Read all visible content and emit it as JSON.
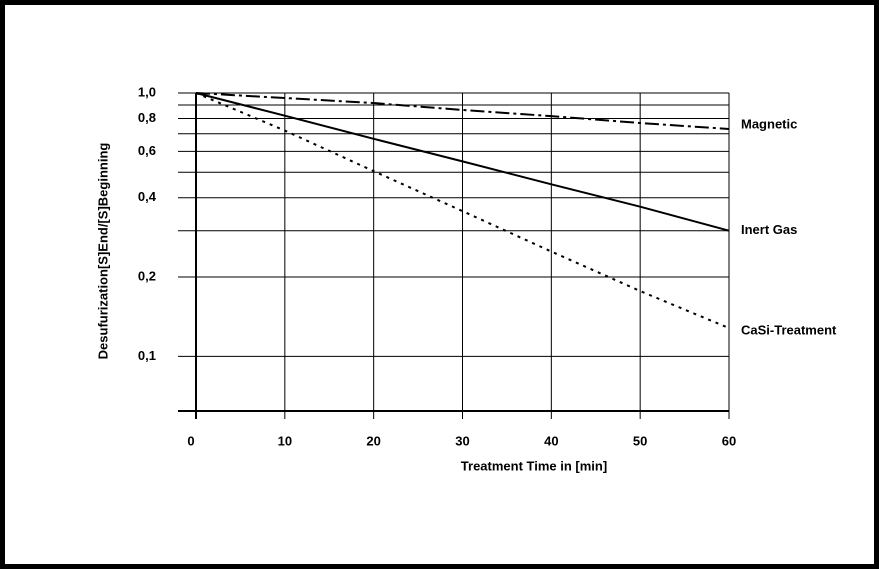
{
  "chart_data": {
    "type": "line",
    "y_label": "Desufurization[S]End/[S]Beginning",
    "x_label": "Treatment Time in [min]",
    "x": [
      0,
      10,
      20,
      30,
      40,
      50,
      60
    ],
    "series": [
      {
        "name": "Magnetic",
        "color": "#000000",
        "style": "dashdot",
        "values": [
          1.0,
          0.957,
          0.916,
          0.862,
          0.817,
          0.769,
          0.73
        ]
      },
      {
        "name": "Inert Gas",
        "color": "#000000",
        "style": "solid",
        "values": [
          1.0,
          0.82,
          0.67,
          0.55,
          0.45,
          0.37,
          0.3
        ]
      },
      {
        "name": "CaSi-Treatment",
        "color": "#000000",
        "style": "dotted",
        "values": [
          1.0,
          0.72,
          0.505,
          0.356,
          0.25,
          0.177,
          0.128
        ]
      }
    ],
    "xlim": [
      0,
      60
    ],
    "xticks": [
      0,
      10,
      20,
      30,
      40,
      50,
      60
    ],
    "ylim": [
      0.062,
      1
    ],
    "log_y": true,
    "yticks": [
      {
        "value": 1,
        "label": "1,0"
      },
      {
        "value": 0.8,
        "label": "0,8"
      },
      {
        "value": 0.6,
        "label": "0,6"
      },
      {
        "value": 0.4,
        "label": "0,4"
      },
      {
        "value": 0.2,
        "label": "0,2"
      },
      {
        "value": 0.1,
        "label": "0,1"
      }
    ],
    "minor_yticks": [
      0.9,
      0.7,
      0.5,
      0.3
    ],
    "grid": true
  }
}
